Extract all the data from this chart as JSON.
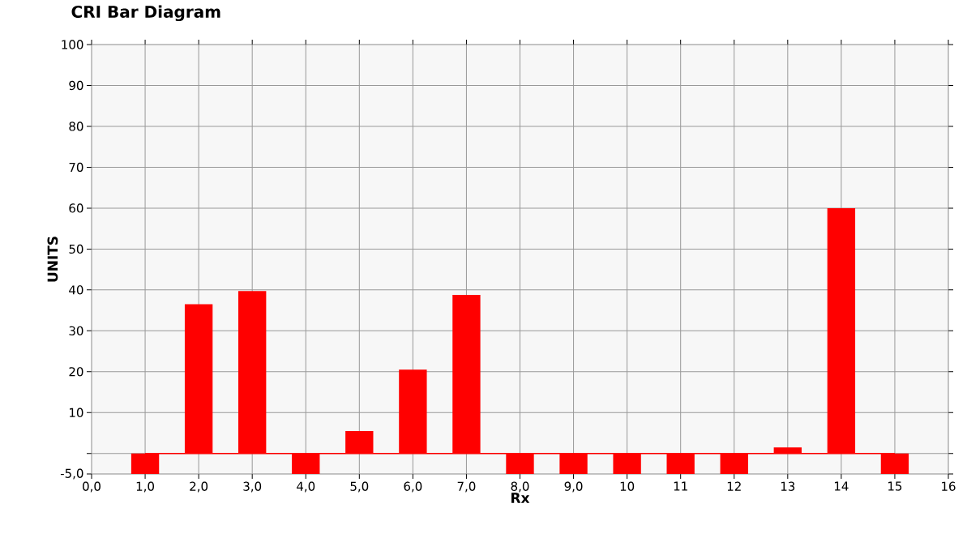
{
  "chart_data": {
    "type": "bar",
    "title": "CRI Bar Diagram",
    "xlabel": "Rx",
    "ylabel": "UNITS",
    "x": [
      1,
      2,
      3,
      4,
      5,
      6,
      7,
      8,
      9,
      10,
      11,
      12,
      13,
      14,
      15
    ],
    "values": [
      -5,
      36.5,
      39.7,
      -5,
      5.5,
      20.5,
      38.8,
      -5,
      -5,
      -5,
      -5,
      -5,
      1.5,
      60,
      -5
    ],
    "color": "#ff0000",
    "xlim": [
      0,
      16
    ],
    "xticks": [
      {
        "value": 0,
        "label": "0,0"
      },
      {
        "value": 1,
        "label": "1,0"
      },
      {
        "value": 2,
        "label": "2,0"
      },
      {
        "value": 3,
        "label": "3,0"
      },
      {
        "value": 4,
        "label": "4,0"
      },
      {
        "value": 5,
        "label": "5,0"
      },
      {
        "value": 6,
        "label": "6,0"
      },
      {
        "value": 7,
        "label": "7,0"
      },
      {
        "value": 8,
        "label": "8,0"
      },
      {
        "value": 9,
        "label": "9,0"
      },
      10,
      11,
      12,
      13,
      14,
      15,
      16
    ],
    "ylim": [
      -5,
      100
    ],
    "yticks": [
      {
        "value": -5,
        "label": "-5,0"
      },
      {
        "value": 0,
        "label": null
      },
      10,
      20,
      30,
      40,
      50,
      60,
      70,
      80,
      90,
      100
    ],
    "ref_lines": [
      {
        "axis": "y",
        "value": 0,
        "color": "#ff0000"
      }
    ],
    "grid": true
  }
}
